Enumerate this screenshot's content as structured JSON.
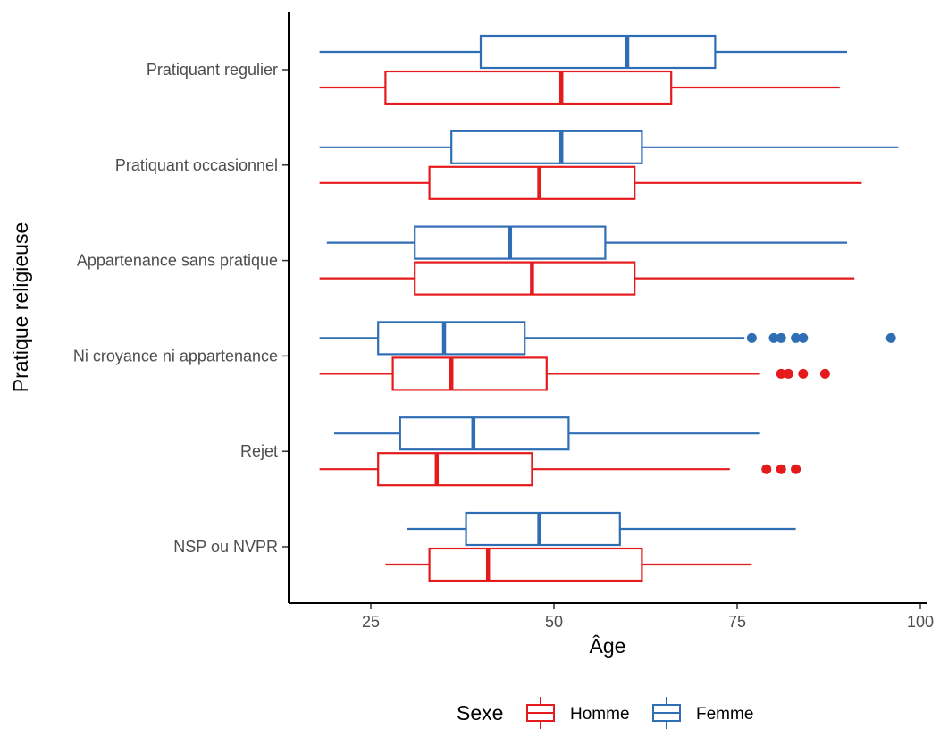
{
  "chart_data": {
    "type": "boxplot",
    "orientation": "horizontal",
    "title": "",
    "xlabel": "Âge",
    "ylabel": "Pratique religieuse",
    "xlim": [
      14,
      101
    ],
    "x_ticks": [
      25,
      50,
      75,
      100
    ],
    "grid": false,
    "legend_position": "bottom",
    "legend_title": "Sexe",
    "categories": [
      "Pratiquant regulier",
      "Pratiquant occasionnel",
      "Appartenance sans pratique",
      "Ni croyance ni appartenance",
      "Rejet",
      "NSP ou NVPR"
    ],
    "series": [
      {
        "name": "Homme",
        "color": "#e41a1c",
        "boxes": [
          {
            "whisker_low": 18,
            "q1": 27,
            "median": 51,
            "q3": 66,
            "whisker_high": 89,
            "outliers": []
          },
          {
            "whisker_low": 18,
            "q1": 33,
            "median": 48,
            "q3": 61,
            "whisker_high": 92,
            "outliers": []
          },
          {
            "whisker_low": 18,
            "q1": 31,
            "median": 47,
            "q3": 61,
            "whisker_high": 91,
            "outliers": []
          },
          {
            "whisker_low": 18,
            "q1": 28,
            "median": 36,
            "q3": 49,
            "whisker_high": 78,
            "outliers": [
              81,
              82,
              84,
              87
            ]
          },
          {
            "whisker_low": 18,
            "q1": 26,
            "median": 34,
            "q3": 47,
            "whisker_high": 74,
            "outliers": [
              79,
              81,
              83
            ]
          },
          {
            "whisker_low": 27,
            "q1": 33,
            "median": 41,
            "q3": 62,
            "whisker_high": 77,
            "outliers": []
          }
        ]
      },
      {
        "name": "Femme",
        "color": "#2f6eb5",
        "boxes": [
          {
            "whisker_low": 18,
            "q1": 40,
            "median": 60,
            "q3": 72,
            "whisker_high": 90,
            "outliers": []
          },
          {
            "whisker_low": 18,
            "q1": 36,
            "median": 51,
            "q3": 62,
            "whisker_high": 97,
            "outliers": []
          },
          {
            "whisker_low": 19,
            "q1": 31,
            "median": 44,
            "q3": 57,
            "whisker_high": 90,
            "outliers": []
          },
          {
            "whisker_low": 18,
            "q1": 26,
            "median": 35,
            "q3": 46,
            "whisker_high": 76,
            "outliers": [
              77,
              80,
              81,
              83,
              84,
              96
            ]
          },
          {
            "whisker_low": 20,
            "q1": 29,
            "median": 39,
            "q3": 52,
            "whisker_high": 78,
            "outliers": []
          },
          {
            "whisker_low": 30,
            "q1": 38,
            "median": 48,
            "q3": 59,
            "whisker_high": 83,
            "outliers": []
          }
        ]
      }
    ]
  }
}
